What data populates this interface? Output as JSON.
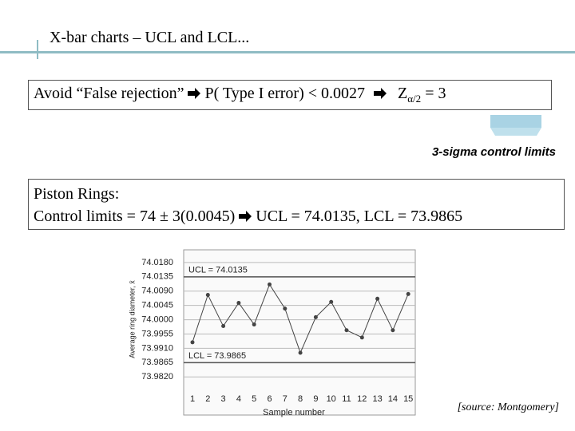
{
  "title": "X-bar charts – UCL and LCL...",
  "box1": {
    "parts": [
      "Avoid “False rejection”",
      "P( Type I error) < 0.0027",
      "Z",
      "α/2",
      " = 3"
    ]
  },
  "callout": "3-sigma control limits",
  "box2": {
    "line1": "Piston Rings:",
    "line2_parts": [
      "Control limits = 74 ± 3(0.0045)",
      "UCL = 74.0135, LCL = 73.9865"
    ]
  },
  "source": "[source: Montgomery]",
  "chart_data": {
    "type": "line",
    "x_label": "Sample number",
    "y_label": "Average ring diameter, x̄",
    "categories": [
      "1",
      "2",
      "3",
      "4",
      "5",
      "6",
      "7",
      "8",
      "9",
      "10",
      "11",
      "12",
      "13",
      "14",
      "15"
    ],
    "values": [
      73.9929,
      74.0078,
      73.998,
      74.0053,
      73.9985,
      74.0111,
      74.0035,
      73.9896,
      74.0008,
      74.0056,
      73.9967,
      73.9944,
      74.0066,
      73.9967,
      74.0081
    ],
    "color": "#444444",
    "ylim": [
      73.97,
      74.022
    ],
    "yticks": [
      {
        "value": 74.018,
        "label": "74.0180"
      },
      74.0135,
      {
        "value": 74.009,
        "label": "74.0090"
      },
      74.0045,
      {
        "value": 74,
        "label": "74.0000"
      },
      73.9955,
      {
        "value": 73.991,
        "label": "73.9910"
      },
      73.9865,
      {
        "value": 73.982,
        "label": "73.9820"
      }
    ],
    "grid": true,
    "ucl": {
      "value": 74.0135,
      "label": "UCL = 74.0135"
    },
    "lcl": {
      "value": 73.9865,
      "label": "LCL = 73.9865"
    }
  }
}
